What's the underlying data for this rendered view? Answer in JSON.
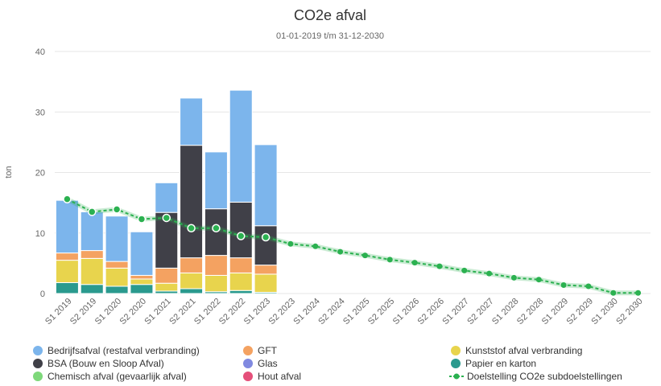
{
  "chart_data": {
    "type": "bar",
    "stacked": true,
    "title": "CO2e afval",
    "subtitle": "01-01-2019 t/m 31-12-2030",
    "ylabel": "ton",
    "xlabel": "",
    "ylim": [
      0,
      40
    ],
    "yticks": [
      0,
      10,
      20,
      30,
      40
    ],
    "grid": true,
    "legend_position": "bottom",
    "categories": [
      "S1 2019",
      "S2 2019",
      "S1 2020",
      "S2 2020",
      "S1 2021",
      "S2 2021",
      "S1 2022",
      "S2 2022",
      "S1 2023",
      "S2 2023",
      "S1 2024",
      "S2 2024",
      "S1 2025",
      "S2 2025",
      "S1 2026",
      "S2 2026",
      "S1 2027",
      "S2 2027",
      "S1 2028",
      "S2 2028",
      "S1 2029",
      "S2 2029",
      "S1 2030",
      "S2 2030"
    ],
    "series": [
      {
        "name": "Papier en karton",
        "color": "#2a9a8e",
        "values": [
          1.8,
          1.5,
          1.2,
          1.5,
          0.4,
          0.8,
          0.3,
          0.5,
          0.2,
          0,
          0,
          0,
          0,
          0,
          0,
          0,
          0,
          0,
          0,
          0,
          0,
          0,
          0,
          0
        ]
      },
      {
        "name": "Kunststof afval verbranding",
        "color": "#e8d44d",
        "values": [
          3.7,
          4.3,
          3.0,
          0.9,
          1.3,
          2.6,
          2.7,
          2.9,
          3.0,
          0,
          0,
          0,
          0,
          0,
          0,
          0,
          0,
          0,
          0,
          0,
          0,
          0,
          0,
          0
        ]
      },
      {
        "name": "Glas",
        "color": "#8089e0",
        "values": [
          0,
          0,
          0,
          0,
          0,
          0,
          0,
          0,
          0,
          0,
          0,
          0,
          0,
          0,
          0,
          0,
          0,
          0,
          0,
          0,
          0,
          0,
          0,
          0
        ]
      },
      {
        "name": "GFT",
        "color": "#f4a261",
        "values": [
          1.2,
          1.3,
          1.1,
          0.6,
          2.5,
          2.5,
          3.3,
          2.5,
          1.5,
          0,
          0,
          0,
          0,
          0,
          0,
          0,
          0,
          0,
          0,
          0,
          0,
          0,
          0,
          0
        ]
      },
      {
        "name": "Hout afval",
        "color": "#e5507a",
        "values": [
          0,
          0,
          0,
          0,
          0,
          0,
          0,
          0,
          0,
          0,
          0,
          0,
          0,
          0,
          0,
          0,
          0,
          0,
          0,
          0,
          0,
          0,
          0,
          0
        ]
      },
      {
        "name": "Chemisch afval (gevaarlijk afval)",
        "color": "#7ed87a",
        "values": [
          0,
          0,
          0,
          0,
          0,
          0,
          0,
          0,
          0,
          0,
          0,
          0,
          0,
          0,
          0,
          0,
          0,
          0,
          0,
          0,
          0,
          0,
          0,
          0
        ]
      },
      {
        "name": "BSA (Bouw en Sloop Afval)",
        "color": "#404048",
        "values": [
          0,
          0,
          0,
          0,
          9.2,
          18.6,
          7.7,
          9.2,
          6.5,
          0,
          0,
          0,
          0,
          0,
          0,
          0,
          0,
          0,
          0,
          0,
          0,
          0,
          0,
          0
        ]
      },
      {
        "name": "Bedrijfsafval (restafval verbranding)",
        "color": "#7cb5ec",
        "values": [
          8.7,
          6.4,
          7.5,
          7.2,
          4.9,
          7.8,
          9.4,
          18.5,
          13.4,
          0,
          0,
          0,
          0,
          0,
          0,
          0,
          0,
          0,
          0,
          0,
          0,
          0,
          0,
          0
        ]
      }
    ],
    "line": {
      "name": "Doelstelling CO2e subdoelstellingen",
      "color": "#2bb150",
      "values": [
        15.6,
        13.5,
        13.9,
        12.3,
        12.5,
        10.8,
        10.8,
        9.5,
        9.3,
        8.2,
        7.8,
        6.9,
        6.3,
        5.6,
        5.1,
        4.5,
        3.8,
        3.3,
        2.6,
        2.3,
        1.4,
        1.2,
        0.1,
        0.1
      ]
    },
    "legend_order": [
      "Bedrijfsafval (restafval verbranding)",
      "BSA (Bouw en Sloop Afval)",
      "Chemisch afval (gevaarlijk afval)",
      "GFT",
      "Glas",
      "Hout afval",
      "Kunststof afval verbranding",
      "Papier en karton",
      "Doelstelling CO2e subdoelstellingen"
    ]
  }
}
